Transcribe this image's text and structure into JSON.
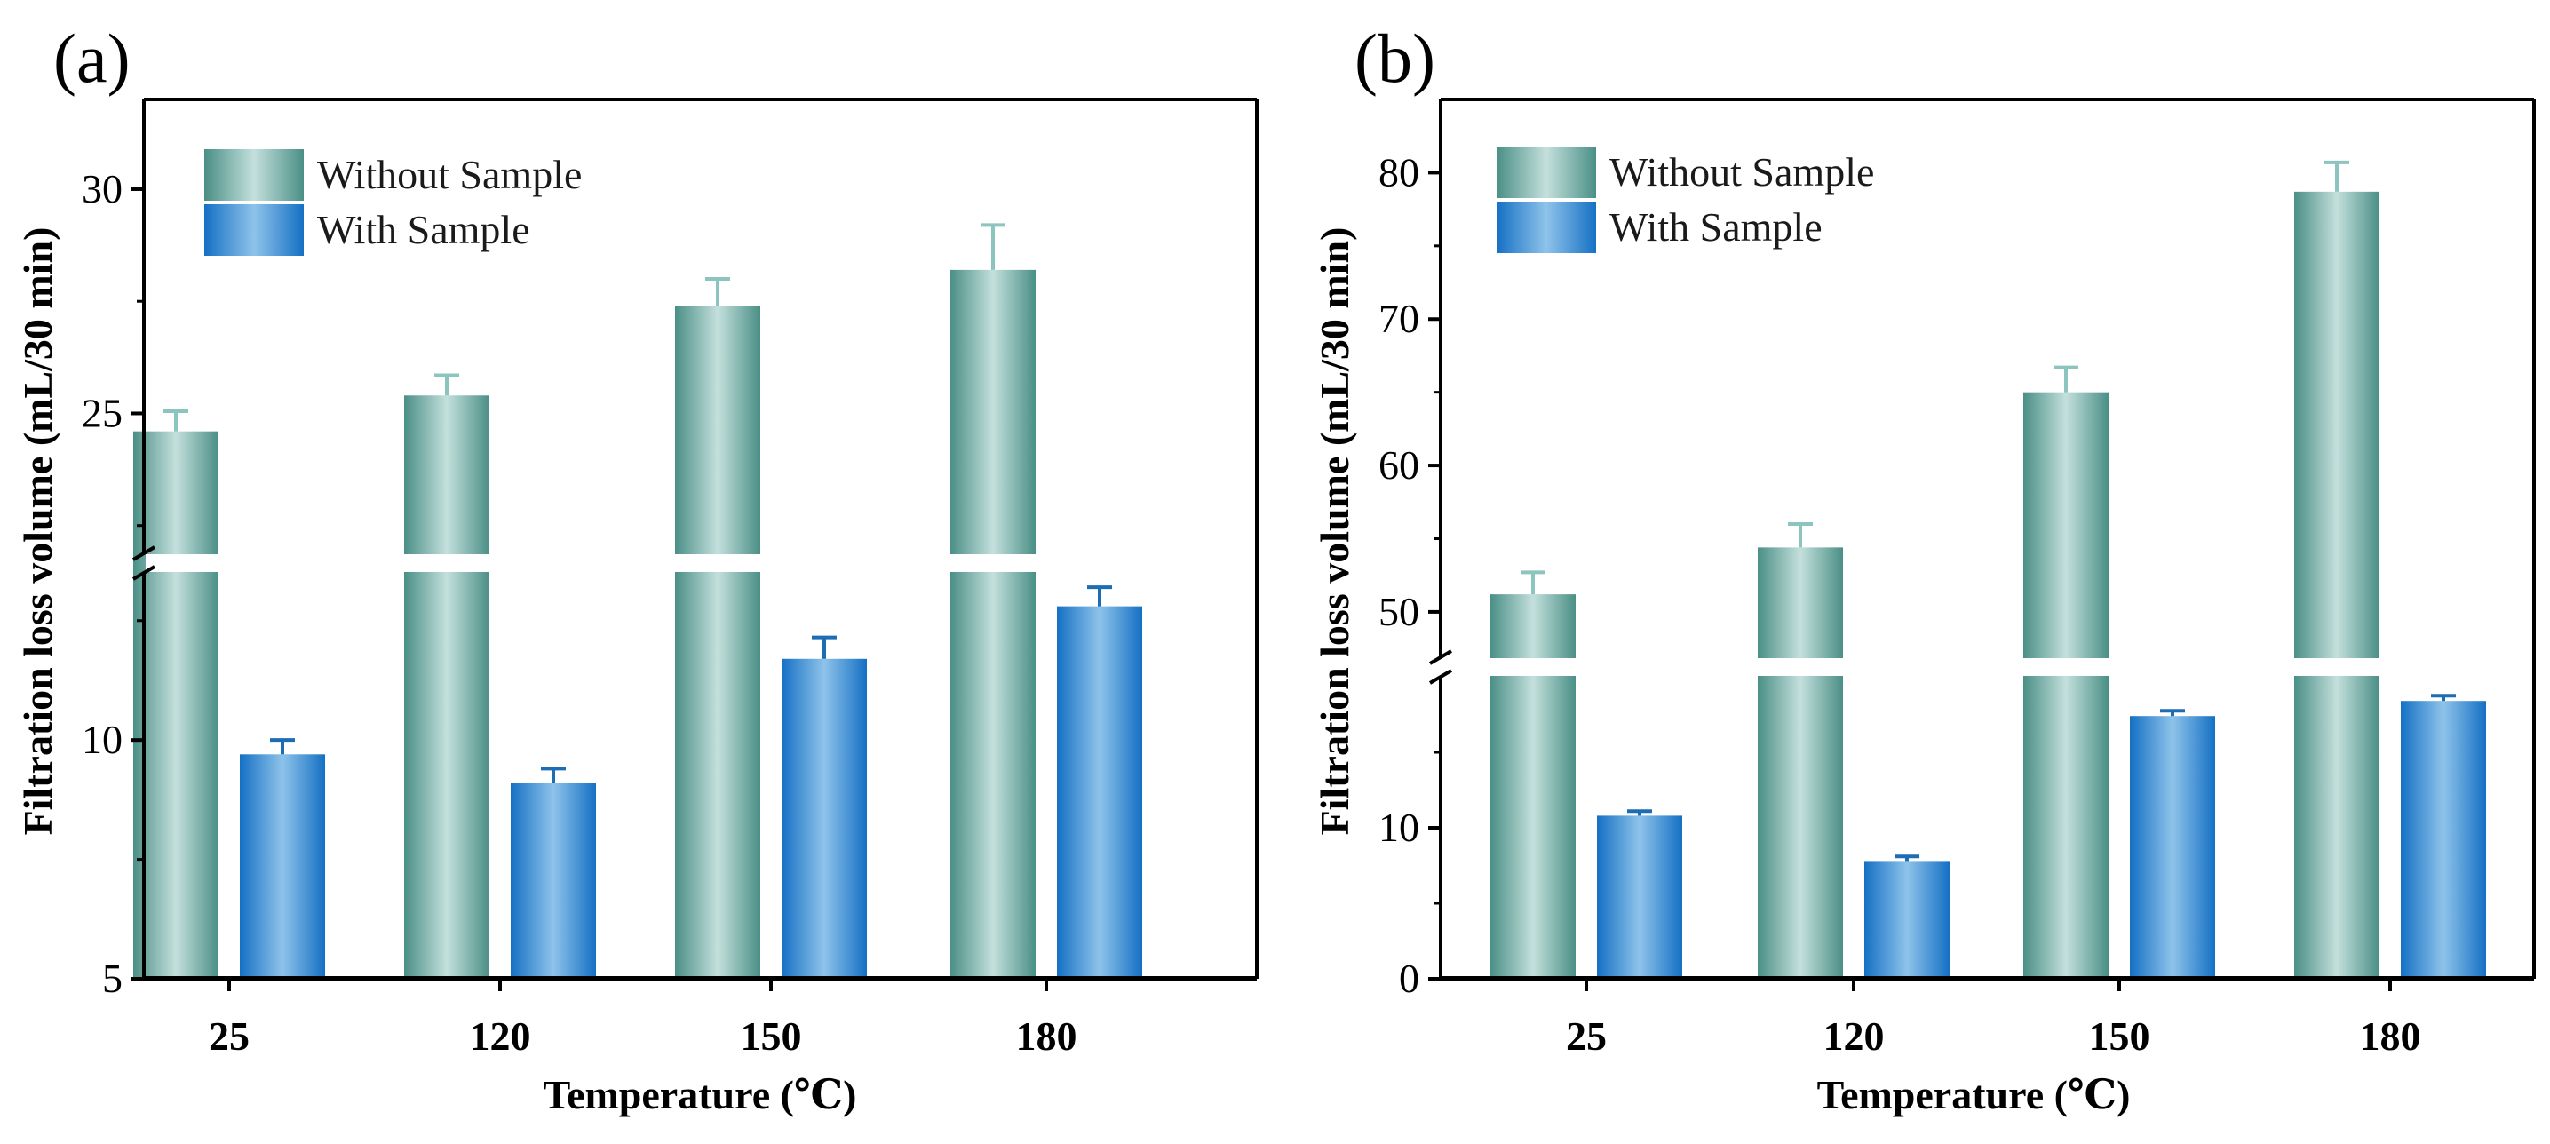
{
  "colors": {
    "without_dark": "#4a8f86",
    "without_light": "#c4e0dc",
    "with_dark": "#1570c4",
    "with_light": "#8ec3ea",
    "error_without": "#8cc4bf",
    "error_with": "#1d6db5"
  },
  "legend": [
    "Without Sample",
    "With Sample"
  ],
  "chart_data": [
    {
      "type": "bar",
      "panel_label": "(a)",
      "categories": [
        "25",
        "120",
        "150",
        "180"
      ],
      "series": [
        {
          "name": "Without Sample",
          "values": [
            24.6,
            25.4,
            27.4,
            28.2
          ],
          "errors": [
            0.45,
            0.45,
            0.6,
            1.0
          ]
        },
        {
          "name": "With Sample",
          "values": [
            9.7,
            9.1,
            11.7,
            12.8
          ],
          "errors": [
            0.3,
            0.3,
            0.45,
            0.4
          ]
        }
      ],
      "xlabel": "Temperature (℃)",
      "ylabel": "Filtration loss volume (mL/30 min)",
      "broken_axis": {
        "lower_range": [
          5,
          13.5
        ],
        "upper_range": [
          21.9,
          32
        ],
        "lower_ticks": [
          "5",
          "10"
        ],
        "upper_ticks": [
          "25",
          "30"
        ]
      }
    },
    {
      "type": "bar",
      "panel_label": "(b)",
      "categories": [
        "25",
        "120",
        "150",
        "180"
      ],
      "series": [
        {
          "name": "Without Sample",
          "values": [
            51.2,
            54.4,
            65.0,
            78.7
          ],
          "errors": [
            1.5,
            1.6,
            1.7,
            2.0
          ]
        },
        {
          "name": "With Sample",
          "values": [
            10.8,
            7.8,
            17.4,
            18.4
          ],
          "errors": [
            0.3,
            0.3,
            0.35,
            0.35
          ]
        }
      ],
      "xlabel": "Temperature (℃)",
      "ylabel": "Filtration loss volume (mL/30 min)",
      "broken_axis": {
        "lower_range": [
          0,
          20
        ],
        "upper_range": [
          46.9,
          85
        ],
        "lower_ticks": [
          "0",
          "10"
        ],
        "upper_ticks": [
          "50",
          "60",
          "70",
          "80"
        ]
      }
    }
  ]
}
